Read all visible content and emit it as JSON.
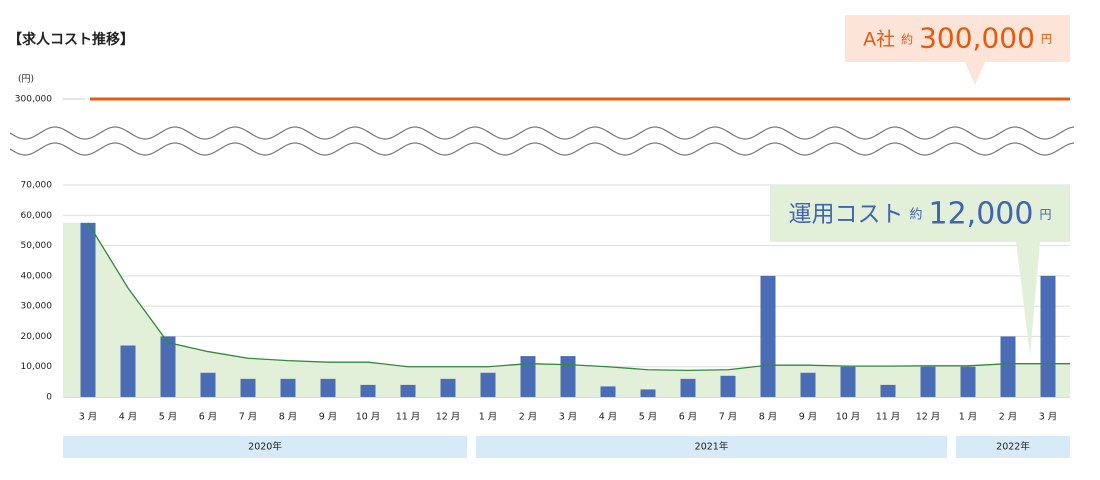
{
  "chart_data": {
    "type": "bar",
    "title": "【求人コスト推移】",
    "y_unit": "(円)",
    "categories": [
      "3 月",
      "4 月",
      "5 月",
      "6 月",
      "7 月",
      "8 月",
      "9 月",
      "10 月",
      "11 月",
      "12 月",
      "1 月",
      "2 月",
      "3 月",
      "4 月",
      "5 月",
      "6 月",
      "7 月",
      "8 月",
      "9 月",
      "10 月",
      "11 月",
      "12 月",
      "1 月",
      "2 月",
      "3 月"
    ],
    "years": [
      "2020年",
      "2021年",
      "2022年"
    ],
    "series": [
      {
        "type": "bar",
        "color": "#4a6db5",
        "values": [
          57500,
          17000,
          20000,
          8000,
          6000,
          6000,
          6000,
          4000,
          4000,
          6000,
          8000,
          13500,
          13500,
          3500,
          2500,
          6000,
          7000,
          40000,
          8000,
          10000,
          4000,
          10000,
          10000,
          20000,
          40000
        ]
      },
      {
        "type": "area",
        "color": "#2e8b3a",
        "fill": "#e2efd9",
        "values": [
          57500,
          36000,
          18000,
          15000,
          12800,
          12000,
          11500,
          11500,
          10000,
          10000,
          10000,
          11000,
          10700,
          10000,
          9000,
          8800,
          9000,
          10500,
          10500,
          10200,
          10200,
          10300,
          10300,
          11000,
          11000
        ]
      }
    ],
    "ylim": [
      0,
      70000
    ],
    "yticks": [
      0,
      {
        "value": 10000,
        "label": "10,000"
      },
      {
        "value": 20000,
        "label": "20,000"
      },
      {
        "value": 30000,
        "label": "30,000"
      },
      {
        "value": 40000,
        "label": "40,000"
      },
      {
        "value": 50000,
        "label": "50,000"
      },
      {
        "value": 60000,
        "label": "60,000"
      },
      {
        "value": 70000,
        "label": "70,000"
      }
    ],
    "grid": true,
    "reference_line": {
      "value": 300000,
      "label": "300,000",
      "color": "#e8590c"
    },
    "callouts": [
      {
        "name": "A社",
        "prefix": "約",
        "value": 300000,
        "label": "300,000",
        "unit": "円",
        "color": "#e8590c",
        "background": "#fde4d8"
      },
      {
        "name": "運用コスト",
        "prefix": "約",
        "value": 12000,
        "label": "12,000",
        "unit": "円",
        "color": "#4065b0",
        "background": "#e2efd9"
      }
    ]
  }
}
